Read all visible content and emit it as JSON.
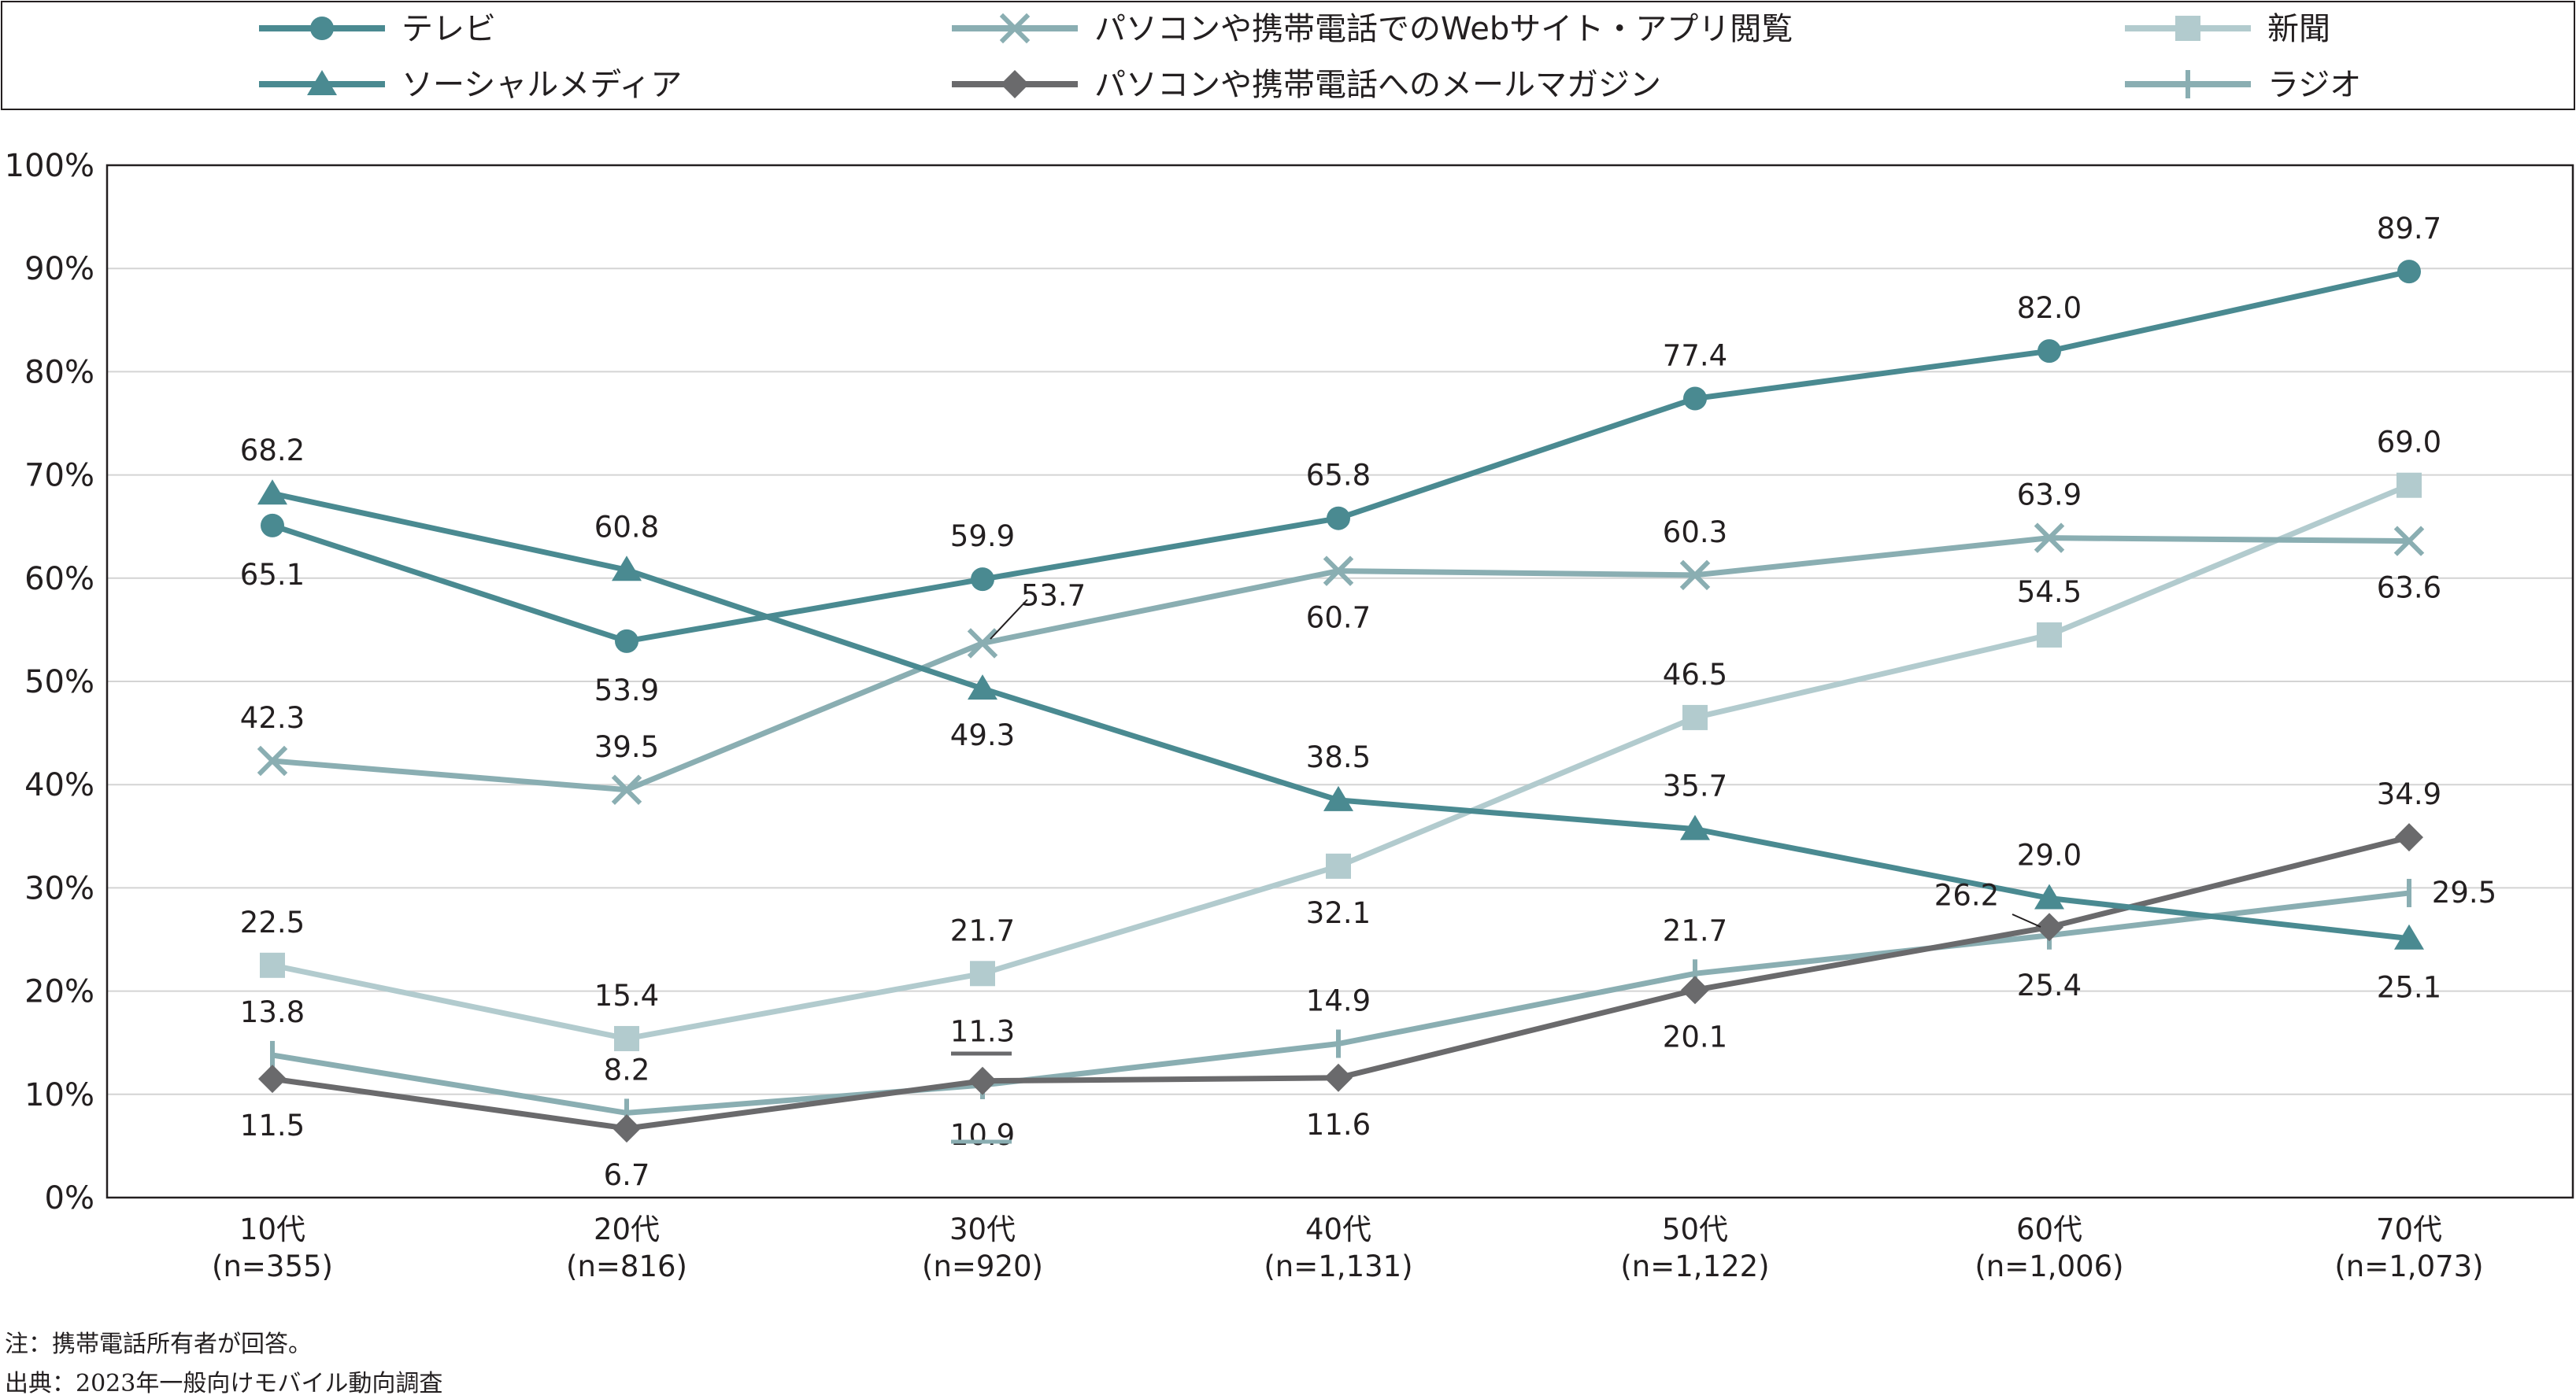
{
  "chart_data": {
    "type": "line",
    "categories": [
      {
        "label": "10代",
        "n": "(n=355)"
      },
      {
        "label": "20代",
        "n": "(n=816)"
      },
      {
        "label": "30代",
        "n": "(n=920)"
      },
      {
        "label": "40代",
        "n": "(n=1,131)"
      },
      {
        "label": "50代",
        "n": "(n=1,122)"
      },
      {
        "label": "60代",
        "n": "(n=1,006)"
      },
      {
        "label": "70代",
        "n": "(n=1,073)"
      }
    ],
    "ylim": [
      0,
      100
    ],
    "yticks": [
      0,
      10,
      20,
      30,
      40,
      50,
      60,
      70,
      80,
      90,
      100
    ],
    "ytick_suffix": "%",
    "grid": "horizontal",
    "legend_placement": "top",
    "series": [
      {
        "name": "テレビ",
        "marker": "circle",
        "color": "#4a8a91",
        "values": [
          65.1,
          53.9,
          59.9,
          65.8,
          77.4,
          82.0,
          89.7
        ],
        "labels": [
          "65.1",
          "53.9",
          "59.9",
          "65.8",
          "77.4",
          "82.0",
          "89.7"
        ]
      },
      {
        "name": "ソーシャルメディア",
        "marker": "triangle",
        "color": "#4a8a91",
        "values": [
          68.2,
          60.8,
          49.3,
          38.5,
          35.7,
          29.0,
          25.1
        ],
        "labels": [
          "68.2",
          "60.8",
          "49.3",
          "38.5",
          "35.7",
          "29.0",
          "25.1"
        ]
      },
      {
        "name": "パソコンや携帯電話でのWebサイト・アプリ閲覧",
        "marker": "x",
        "color": "#8aaeb2",
        "values": [
          42.3,
          39.5,
          53.7,
          60.7,
          60.3,
          63.9,
          63.6
        ],
        "labels": [
          "42.3",
          "39.5",
          "53.7",
          "60.7",
          "60.3",
          "63.9",
          "63.6"
        ]
      },
      {
        "name": "パソコンや携帯電話へのメールマガジン",
        "marker": "diamond",
        "color": "#6a6a6c",
        "values": [
          11.5,
          6.7,
          11.3,
          11.6,
          20.1,
          26.2,
          34.9
        ],
        "labels": [
          "11.5",
          "6.7",
          "11.3",
          "11.6",
          "20.1",
          "26.2",
          "34.9"
        ]
      },
      {
        "name": "新聞",
        "marker": "square",
        "color": "#b2cbce",
        "values": [
          22.5,
          15.4,
          21.7,
          32.1,
          46.5,
          54.5,
          69.0
        ],
        "labels": [
          "22.5",
          "15.4",
          "21.7",
          "32.1",
          "46.5",
          "54.5",
          "69.0"
        ]
      },
      {
        "name": "ラジオ",
        "marker": "plus",
        "color": "#8aaeb2",
        "values": [
          13.8,
          8.2,
          10.9,
          14.9,
          21.7,
          25.4,
          29.5
        ],
        "labels": [
          "13.8",
          "8.2",
          "10.9",
          "14.9",
          "21.7",
          "25.4",
          "29.5"
        ]
      }
    ]
  },
  "notes": {
    "note": "注：携帯電話所有者が回答。",
    "source": "出典：2023年一般向けモバイル動向調査"
  }
}
